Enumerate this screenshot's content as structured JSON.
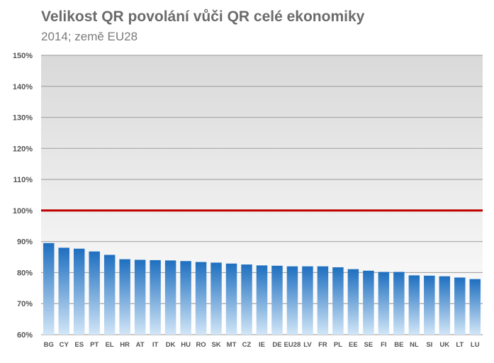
{
  "chart_data": {
    "type": "bar",
    "title": "Velikost QR povolání vůči QR celé ekonomiky",
    "subtitle": "2014; země EU28",
    "xlabel": "",
    "ylabel": "",
    "categories": [
      "BG",
      "CY",
      "ES",
      "PT",
      "EL",
      "HR",
      "AT",
      "IT",
      "DK",
      "HU",
      "RO",
      "SK",
      "MT",
      "CZ",
      "IE",
      "DE",
      "EU28",
      "LV",
      "FR",
      "PL",
      "EE",
      "SE",
      "FI",
      "BE",
      "NL",
      "SI",
      "UK",
      "LT",
      "LU"
    ],
    "values": [
      89.5,
      88.0,
      87.7,
      86.8,
      85.7,
      84.3,
      84.1,
      84.0,
      83.9,
      83.7,
      83.4,
      83.2,
      82.9,
      82.6,
      82.3,
      82.2,
      82.0,
      82.0,
      82.0,
      81.7,
      81.1,
      80.6,
      80.2,
      80.2,
      79.1,
      79.0,
      78.8,
      78.4,
      77.9
    ],
    "yticks": [
      "60%",
      "70%",
      "80%",
      "90%",
      "100%",
      "110%",
      "120%",
      "130%",
      "140%",
      "150%"
    ],
    "ylim": [
      60,
      150
    ],
    "reference_line": {
      "value": 100,
      "color": "#c00000"
    },
    "grid": true,
    "colors": {
      "bar_top": "#1e6fc0",
      "bar_bottom": "#d2e6f7",
      "background_top": "#d9d9d9",
      "background_bottom": "#ffffff",
      "grid": "#a6a6a6"
    }
  }
}
